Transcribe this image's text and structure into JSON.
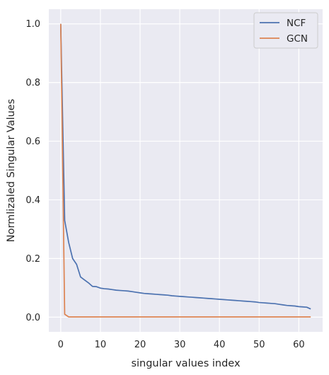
{
  "chart_data": {
    "type": "line",
    "title": "",
    "xlabel": "singular values index",
    "ylabel": "Normlizaled Singular Values",
    "xlim": [
      -3,
      66
    ],
    "ylim": [
      -0.05,
      1.05
    ],
    "xticks": [
      0,
      10,
      20,
      30,
      40,
      50,
      60
    ],
    "yticks": [
      0.0,
      0.2,
      0.4,
      0.6,
      0.8,
      1.0
    ],
    "xtick_labels": [
      "0",
      "10",
      "20",
      "30",
      "40",
      "50",
      "60"
    ],
    "ytick_labels": [
      "0.0",
      "0.2",
      "0.4",
      "0.6",
      "0.8",
      "1.0"
    ],
    "grid": true,
    "legend_position": "top-right",
    "x": [
      0,
      1,
      2,
      3,
      4,
      5,
      6,
      7,
      8,
      9,
      10,
      11,
      12,
      13,
      14,
      15,
      16,
      17,
      18,
      19,
      20,
      21,
      22,
      23,
      24,
      25,
      26,
      27,
      28,
      29,
      30,
      31,
      32,
      33,
      34,
      35,
      36,
      37,
      38,
      39,
      40,
      41,
      42,
      43,
      44,
      45,
      46,
      47,
      48,
      49,
      50,
      51,
      52,
      53,
      54,
      55,
      56,
      57,
      58,
      59,
      60,
      61,
      62,
      63
    ],
    "series": [
      {
        "name": "NCF",
        "color": "#4c72b0",
        "values": [
          1.0,
          0.33,
          0.255,
          0.2,
          0.18,
          0.137,
          0.127,
          0.117,
          0.105,
          0.104,
          0.099,
          0.097,
          0.096,
          0.094,
          0.092,
          0.091,
          0.09,
          0.089,
          0.087,
          0.085,
          0.083,
          0.081,
          0.08,
          0.079,
          0.078,
          0.077,
          0.076,
          0.075,
          0.073,
          0.072,
          0.071,
          0.07,
          0.069,
          0.068,
          0.067,
          0.066,
          0.065,
          0.064,
          0.063,
          0.062,
          0.061,
          0.06,
          0.059,
          0.058,
          0.057,
          0.056,
          0.055,
          0.054,
          0.053,
          0.052,
          0.05,
          0.049,
          0.048,
          0.047,
          0.046,
          0.044,
          0.042,
          0.04,
          0.039,
          0.038,
          0.036,
          0.035,
          0.034,
          0.028
        ]
      },
      {
        "name": "GCN",
        "color": "#dd8452",
        "values": [
          1.0,
          0.01,
          0.001,
          0.001,
          0.001,
          0.001,
          0.001,
          0.001,
          0.001,
          0.001,
          0.001,
          0.001,
          0.001,
          0.001,
          0.001,
          0.001,
          0.001,
          0.001,
          0.001,
          0.001,
          0.001,
          0.001,
          0.001,
          0.001,
          0.001,
          0.001,
          0.001,
          0.001,
          0.001,
          0.001,
          0.001,
          0.001,
          0.001,
          0.001,
          0.001,
          0.001,
          0.001,
          0.001,
          0.001,
          0.001,
          0.001,
          0.001,
          0.001,
          0.001,
          0.001,
          0.001,
          0.001,
          0.001,
          0.001,
          0.001,
          0.001,
          0.001,
          0.001,
          0.001,
          0.001,
          0.001,
          0.001,
          0.001,
          0.001,
          0.001,
          0.001,
          0.001,
          0.001,
          0.001
        ]
      }
    ]
  }
}
